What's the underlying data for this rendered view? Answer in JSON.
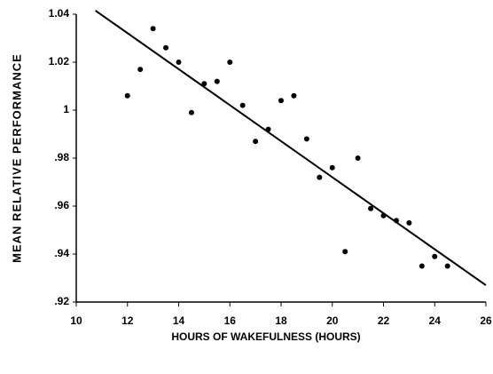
{
  "chart_data": {
    "type": "scatter",
    "xlabel": "HOURS OF WAKEFULNESS (HOURS)",
    "ylabel": "MEAN RELATIVE PERFORMANCE",
    "series": [
      {
        "color": "#000000",
        "x": [
          12,
          12.5,
          13,
          13.5,
          14,
          14.5,
          15,
          15.5,
          16,
          16.5,
          17,
          17.5,
          18,
          18.5,
          19,
          19.5,
          20,
          20.5,
          21,
          21.5,
          22,
          22.5,
          23,
          23.5,
          24,
          24.5
        ],
        "values": [
          1.006,
          1.017,
          1.034,
          1.026,
          1.02,
          0.999,
          1.011,
          1.012,
          1.02,
          1.002,
          0.987,
          0.992,
          1.004,
          1.006,
          0.988,
          0.972,
          0.976,
          0.941,
          0.98,
          0.959,
          0.956,
          0.954,
          0.953,
          0.935,
          0.939,
          0.935
        ]
      }
    ],
    "fit_line": {
      "color": "#000000",
      "x": [
        10.75,
        26
      ],
      "values": [
        1.0415,
        0.927
      ]
    },
    "xlim": [
      10,
      26
    ],
    "xticks": [
      10,
      12,
      14,
      16,
      18,
      20,
      22,
      24,
      26
    ],
    "ylim": [
      0.92,
      1.04
    ],
    "yticks": [
      {
        "value": 0.92,
        "label": ".92"
      },
      {
        "value": 0.94,
        "label": ".94"
      },
      {
        "value": 0.96,
        "label": ".96"
      },
      {
        "value": 0.98,
        "label": ".98"
      },
      1,
      1.02,
      1.04
    ],
    "grid": false
  }
}
